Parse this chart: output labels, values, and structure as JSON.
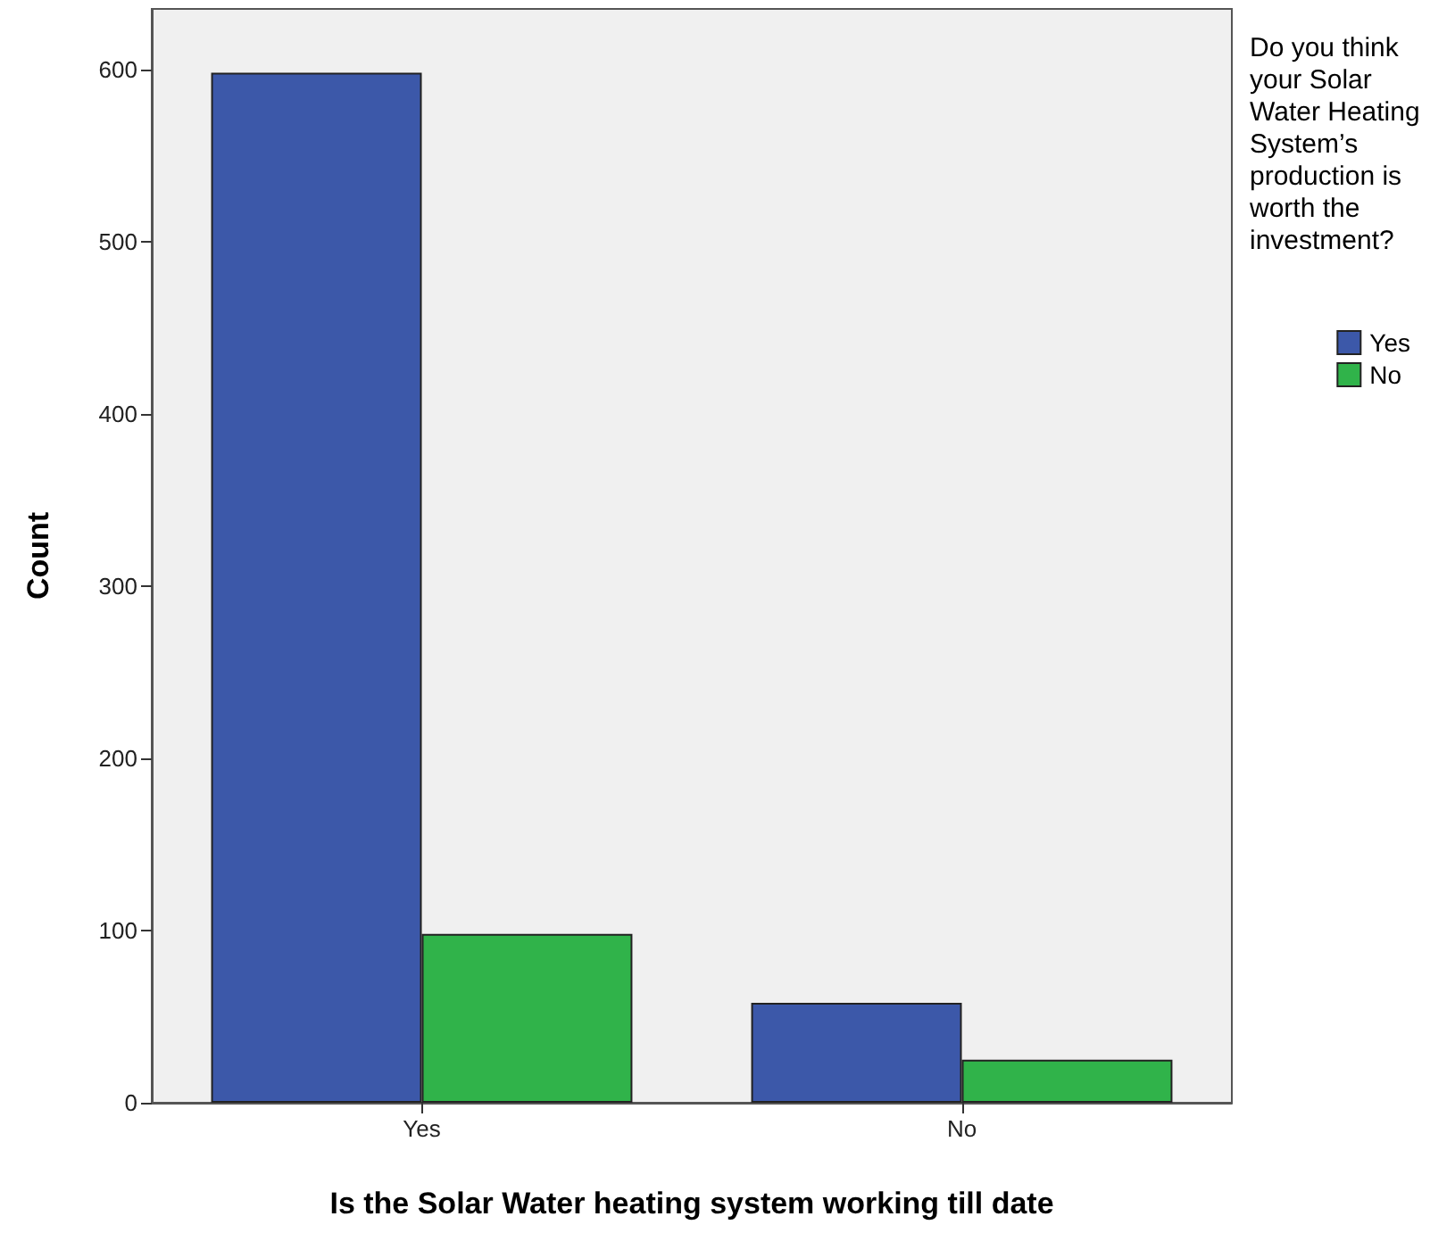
{
  "chart_data": {
    "type": "bar",
    "xlabel": "Is the Solar Water heating system working till date",
    "ylabel": "Count",
    "legend_title": "Do you think your Solar Water Heating System’s production is worth the investment?",
    "categories": [
      "Yes",
      "No"
    ],
    "series": [
      {
        "name": "Yes",
        "color": "#3c58a9",
        "values": [
          598,
          58
        ]
      },
      {
        "name": "No",
        "color": "#30b34a",
        "values": [
          98,
          25
        ]
      }
    ],
    "ylim": [
      0,
      635
    ],
    "yticks": [
      0,
      100,
      200,
      300,
      400,
      500,
      600
    ],
    "grid": false,
    "legend": "right"
  }
}
